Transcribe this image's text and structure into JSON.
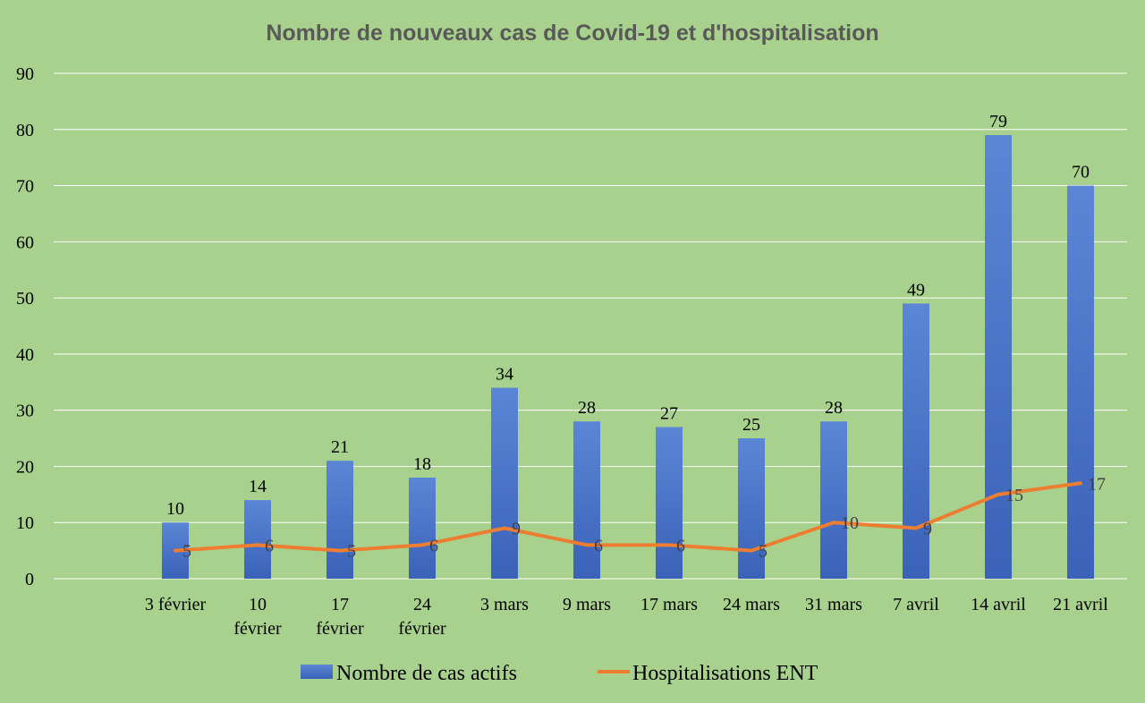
{
  "chart_data": {
    "type": "bar",
    "title": "Nombre de nouveaux cas de Covid-19 et d'hospitalisation",
    "categories": [
      [
        "3 février"
      ],
      [
        "10",
        "février"
      ],
      [
        "17",
        "février"
      ],
      [
        "24",
        "février"
      ],
      [
        "3 mars"
      ],
      [
        "9 mars"
      ],
      [
        "17 mars"
      ],
      [
        "24 mars"
      ],
      [
        "31 mars"
      ],
      [
        "7 avril"
      ],
      [
        "14 avril"
      ],
      [
        "21 avril"
      ]
    ],
    "series": [
      {
        "name": "Nombre de cas actifs",
        "type": "bar",
        "color": "#4472c4",
        "values": [
          10,
          14,
          21,
          18,
          34,
          28,
          27,
          25,
          28,
          49,
          79,
          70
        ]
      },
      {
        "name": "Hospitalisations ENT",
        "type": "line",
        "color": "#ed7d31",
        "values": [
          5,
          6,
          5,
          6,
          9,
          6,
          6,
          5,
          10,
          9,
          15,
          17
        ]
      }
    ],
    "ylim": [
      0,
      90
    ],
    "yticks": [
      0,
      10,
      20,
      30,
      40,
      50,
      60,
      70,
      80,
      90
    ],
    "xlabel": "",
    "ylabel": "",
    "grid": true,
    "legend_position": "bottom"
  }
}
